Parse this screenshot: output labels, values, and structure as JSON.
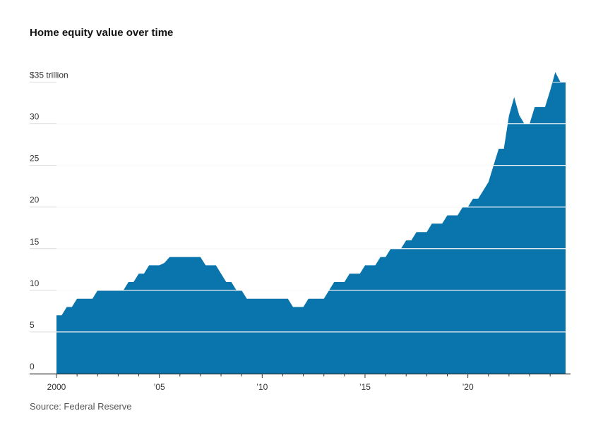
{
  "chart_data": {
    "type": "area",
    "title": "Home equity value over time",
    "source": "Source: Federal Reserve",
    "ylabel": "trillion",
    "ylim": [
      0,
      35
    ],
    "xlim": [
      2000,
      2024.75
    ],
    "y_ticks": [
      {
        "value": 0,
        "label": "0"
      },
      {
        "value": 5,
        "label": "5"
      },
      {
        "value": 10,
        "label": "10"
      },
      {
        "value": 15,
        "label": "15"
      },
      {
        "value": 20,
        "label": "20"
      },
      {
        "value": 25,
        "label": "25"
      },
      {
        "value": 30,
        "label": "30"
      },
      {
        "value": 35,
        "label": "$35 trillion"
      }
    ],
    "x_ticks": [
      {
        "value": 2000,
        "label": "2000"
      },
      {
        "value": 2005,
        "label": "’05"
      },
      {
        "value": 2010,
        "label": "’10"
      },
      {
        "value": 2015,
        "label": "’15"
      },
      {
        "value": 2020,
        "label": "’20"
      }
    ],
    "color": "#0a75ad",
    "series": [
      {
        "name": "Home equity",
        "x": [
          2000,
          2000.25,
          2000.5,
          2000.75,
          2001,
          2001.5,
          2001.75,
          2002,
          2002.5,
          2003,
          2003.25,
          2003.5,
          2003.75,
          2004,
          2004.25,
          2004.5,
          2004.75,
          2005,
          2005.25,
          2005.5,
          2005.75,
          2006,
          2006.5,
          2007,
          2007.25,
          2007.5,
          2007.75,
          2008,
          2008.25,
          2008.5,
          2008.75,
          2009,
          2009.25,
          2009.5,
          2010,
          2010.5,
          2011,
          2011.25,
          2011.5,
          2011.75,
          2012,
          2012.25,
          2012.5,
          2012.75,
          2013,
          2013.25,
          2013.5,
          2013.75,
          2014,
          2014.25,
          2014.5,
          2014.75,
          2015,
          2015.25,
          2015.5,
          2015.75,
          2016,
          2016.25,
          2016.5,
          2016.75,
          2017,
          2017.25,
          2017.5,
          2017.75,
          2018,
          2018.25,
          2018.5,
          2018.75,
          2019,
          2019.25,
          2019.5,
          2019.75,
          2020,
          2020.25,
          2020.5,
          2020.75,
          2021,
          2021.25,
          2021.5,
          2021.75,
          2022,
          2022.25,
          2022.5,
          2022.75,
          2023,
          2023.25,
          2023.5,
          2023.75,
          2024,
          2024.25,
          2024.5,
          2024.75
        ],
        "values": [
          7.0,
          7.0,
          8.0,
          8.0,
          9.0,
          9.0,
          9.0,
          10.0,
          10.0,
          10.0,
          10.0,
          11.0,
          11.0,
          12.0,
          12.0,
          13.0,
          13.0,
          13.0,
          13.3,
          14.0,
          14.0,
          14.0,
          14.0,
          14.0,
          13.0,
          13.0,
          13.0,
          12.0,
          11.0,
          11.0,
          10.0,
          10.0,
          9.0,
          9.0,
          9.0,
          9.0,
          9.0,
          9.0,
          8.0,
          8.0,
          8.0,
          9.0,
          9.0,
          9.0,
          9.0,
          10.0,
          11.0,
          11.0,
          11.0,
          12.0,
          12.0,
          12.0,
          13.0,
          13.0,
          13.0,
          14.0,
          14.0,
          15.0,
          15.0,
          15.0,
          16.0,
          16.0,
          17.0,
          17.0,
          17.0,
          18.0,
          18.0,
          18.0,
          19.0,
          19.0,
          19.0,
          20.0,
          20.0,
          21.0,
          21.0,
          22.0,
          23.0,
          25.0,
          27.0,
          27.0,
          31.0,
          33.2,
          31.0,
          30.0,
          30.0,
          32.0,
          32.0,
          32.0,
          34.0,
          36.2,
          35.0,
          35.0
        ]
      }
    ]
  }
}
